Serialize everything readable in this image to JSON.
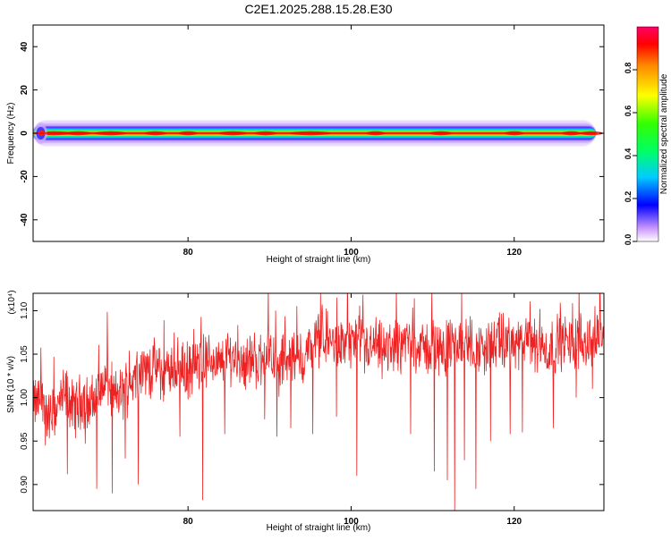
{
  "figure_title": "C2E1.2025.288.15.28.E30",
  "chart_data": [
    {
      "type": "heatmap",
      "title": "",
      "xlabel": "Height of straight line (km)",
      "ylabel": "Frequency (Hz)",
      "xlim": [
        61,
        131
      ],
      "ylim": [
        -50,
        50
      ],
      "x_ticks": [
        80,
        100,
        120
      ],
      "y_ticks": [
        -40,
        -20,
        0,
        20,
        40
      ],
      "colorbar": {
        "label": "Normalized spectral amplitude",
        "range": [
          0,
          1
        ],
        "ticks": [
          0.0,
          0.2,
          0.4,
          0.6,
          0.8
        ],
        "colors": [
          "#ffffff",
          "#cc99ff",
          "#0000ff",
          "#00ccff",
          "#00ff66",
          "#33ff00",
          "#ffff00",
          "#ff8800",
          "#ff0000",
          "#ff0066"
        ]
      },
      "ridge": {
        "center_frequency_hz": 0,
        "x_start_km": 61,
        "x_end_km": 130,
        "peak_amplitude": 0.9
      }
    },
    {
      "type": "line",
      "title": "",
      "xlabel": "Height of straight line (km)",
      "ylabel": "SNR (10 * v/v)",
      "y_multiplier": "(x10⁴)",
      "xlim": [
        61,
        131
      ],
      "ylim": [
        0.87,
        1.12
      ],
      "x_ticks": [
        80,
        100,
        120
      ],
      "y_ticks": [
        0.9,
        0.95,
        1.0,
        1.05,
        1.1
      ],
      "line_color": "#ee2222",
      "series": [
        {
          "x_range": [
            61,
            131
          ],
          "trend": [
            [
              61,
              0.99
            ],
            [
              62,
              1.0
            ],
            [
              63,
              0.975
            ],
            [
              64,
              0.99
            ],
            [
              65,
              1.005
            ],
            [
              66,
              0.985
            ],
            [
              67,
              1.0
            ],
            [
              68,
              0.99
            ],
            [
              69,
              1.005
            ],
            [
              70,
              1.02
            ],
            [
              71,
              1.0
            ],
            [
              72,
              1.005
            ],
            [
              73,
              1.02
            ],
            [
              74,
              1.035
            ],
            [
              75,
              1.03
            ],
            [
              76,
              1.035
            ],
            [
              77,
              1.025
            ],
            [
              78,
              1.035
            ],
            [
              79,
              1.035
            ],
            [
              80,
              1.03
            ],
            [
              81,
              1.035
            ],
            [
              82,
              1.04
            ],
            [
              83,
              1.045
            ],
            [
              84,
              1.035
            ],
            [
              85,
              1.05
            ],
            [
              86,
              1.045
            ],
            [
              87,
              1.04
            ],
            [
              88,
              1.045
            ],
            [
              89,
              1.04
            ],
            [
              90,
              1.06
            ],
            [
              91,
              1.03
            ],
            [
              92,
              1.05
            ],
            [
              93,
              1.045
            ],
            [
              94,
              1.04
            ],
            [
              95,
              1.06
            ],
            [
              96,
              1.065
            ],
            [
              97,
              1.07
            ],
            [
              98,
              1.06
            ],
            [
              99,
              1.06
            ],
            [
              100,
              1.065
            ],
            [
              101,
              1.06
            ],
            [
              102,
              1.055
            ],
            [
              103,
              1.06
            ],
            [
              104,
              1.05
            ],
            [
              105,
              1.06
            ],
            [
              106,
              1.06
            ],
            [
              107,
              1.065
            ],
            [
              108,
              1.06
            ],
            [
              109,
              1.055
            ],
            [
              110,
              1.06
            ],
            [
              111,
              1.055
            ],
            [
              112,
              1.06
            ],
            [
              113,
              1.06
            ],
            [
              114,
              1.065
            ],
            [
              115,
              1.06
            ],
            [
              116,
              1.055
            ],
            [
              117,
              1.06
            ],
            [
              118,
              1.06
            ],
            [
              119,
              1.065
            ],
            [
              120,
              1.06
            ],
            [
              121,
              1.06
            ],
            [
              122,
              1.065
            ],
            [
              123,
              1.06
            ],
            [
              124,
              1.055
            ],
            [
              125,
              1.06
            ],
            [
              126,
              1.065
            ],
            [
              127,
              1.06
            ],
            [
              128,
              1.065
            ],
            [
              129,
              1.065
            ],
            [
              130,
              1.07
            ],
            [
              131,
              1.075
            ]
          ],
          "dips": [
            [
              62.5,
              0.945
            ],
            [
              65.2,
              0.912
            ],
            [
              67.4,
              0.947
            ],
            [
              68.8,
              0.895
            ],
            [
              70.7,
              0.89
            ],
            [
              72.3,
              0.93
            ],
            [
              73.9,
              0.9
            ],
            [
              79.0,
              0.955
            ],
            [
              81.8,
              0.882
            ],
            [
              84.5,
              0.958
            ],
            [
              89.4,
              0.975
            ],
            [
              90.9,
              0.955
            ],
            [
              92.6,
              0.965
            ],
            [
              95.3,
              0.958
            ],
            [
              98.2,
              0.978
            ],
            [
              100.7,
              0.91
            ],
            [
              107.3,
              0.958
            ],
            [
              110.2,
              0.915
            ],
            [
              111.8,
              0.905
            ],
            [
              112.7,
              0.87
            ],
            [
              113.9,
              0.928
            ],
            [
              115.3,
              0.895
            ],
            [
              117.1,
              0.95
            ],
            [
              119.5,
              0.958
            ],
            [
              121.0,
              0.96
            ],
            [
              124.8,
              0.965
            ],
            [
              127.6,
              1.0
            ],
            [
              129.6,
              1.01
            ]
          ]
        }
      ]
    }
  ]
}
